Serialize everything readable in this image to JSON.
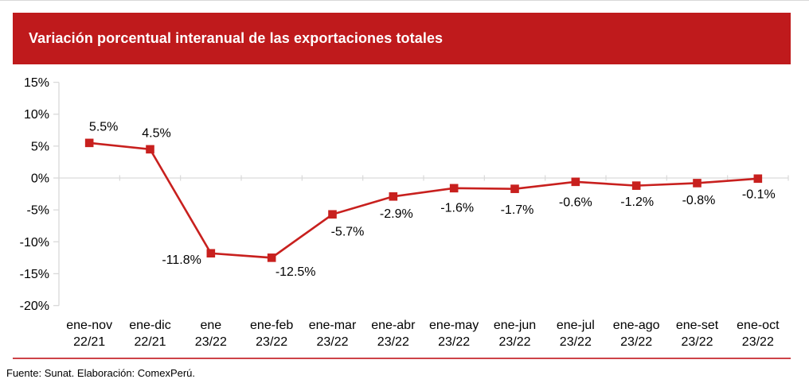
{
  "header": {
    "title": "Variación porcentual interanual de las exportaciones totales"
  },
  "chart_data": {
    "type": "line",
    "title": "Variación porcentual interanual de las exportaciones totales",
    "categories": [
      {
        "period": "ene-nov",
        "years": "22/21"
      },
      {
        "period": "ene-dic",
        "years": "22/21"
      },
      {
        "period": "ene",
        "years": "23/22"
      },
      {
        "period": "ene-feb",
        "years": "23/22"
      },
      {
        "period": "ene-mar",
        "years": "23/22"
      },
      {
        "period": "ene-abr",
        "years": "23/22"
      },
      {
        "period": "ene-may",
        "years": "23/22"
      },
      {
        "period": "ene-jun",
        "years": "23/22"
      },
      {
        "period": "ene-jul",
        "years": "23/22"
      },
      {
        "period": "ene-ago",
        "years": "23/22"
      },
      {
        "period": "ene-set",
        "years": "23/22"
      },
      {
        "period": "ene-oct",
        "years": "23/22"
      }
    ],
    "values": [
      5.5,
      4.5,
      -11.8,
      -12.5,
      -5.7,
      -2.9,
      -1.6,
      -1.7,
      -0.6,
      -1.2,
      -0.8,
      -0.1
    ],
    "point_labels": [
      "5.5%",
      "4.5%",
      "-11.8%",
      "-12.5%",
      "-5.7%",
      "-2.9%",
      "-1.6%",
      "-1.7%",
      "-0.6%",
      "-1.2%",
      "-0.8%",
      "-0.1%"
    ],
    "ytick_labels": [
      "15%",
      "10%",
      "5%",
      "0%",
      "-5%",
      "-10%",
      "-15%",
      "-20%"
    ],
    "ytick_values": [
      15,
      10,
      5,
      0,
      -5,
      -10,
      -15,
      -20
    ],
    "ylim": [
      -20,
      15
    ],
    "xlabel": "",
    "ylabel": "",
    "legend": "none",
    "grid": "zero-line-only",
    "marker": "square"
  },
  "footer": {
    "source": "Fuente: Sunat. Elaboración: ComexPerú."
  },
  "colors": {
    "banner_red": "#bf1a1c",
    "series_red": "#c8201e",
    "separator_red": "#cd4348",
    "axis_gray": "#d9d9d9",
    "text_black": "#000000",
    "title_white": "#ffffff"
  }
}
